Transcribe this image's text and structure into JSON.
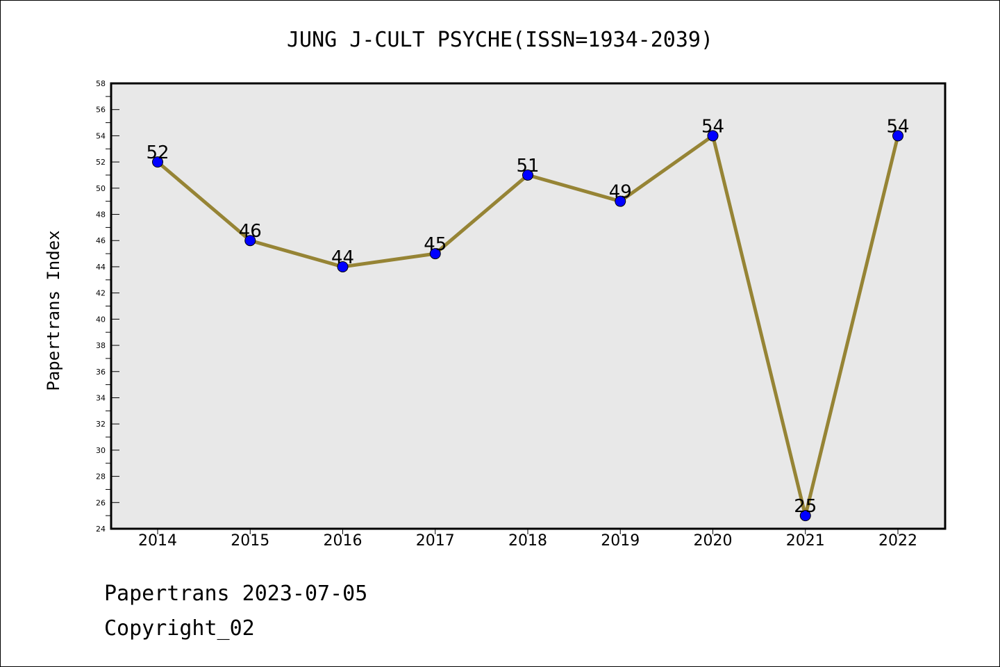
{
  "chart_data": {
    "type": "line",
    "title": "JUNG J-CULT PSYCHE(ISSN=1934-2039)",
    "xlabel": "",
    "ylabel": "Papertrans Index",
    "x": [
      "2014",
      "2015",
      "2016",
      "2017",
      "2018",
      "2019",
      "2020",
      "2021",
      "2022"
    ],
    "series": [
      {
        "values": [
          52,
          46,
          44,
          45,
          51,
          49,
          54,
          25,
          54
        ]
      }
    ],
    "ylim": [
      24,
      58
    ],
    "ytick_step": 2,
    "grid": false,
    "legend": "none",
    "data_labels": true
  },
  "colors": {
    "plot_background": "#e8e8e8",
    "line": "#968435",
    "marker": "#0000ff"
  },
  "footer": {
    "line1": "Papertrans 2023-07-05",
    "line2": "Copyright_02"
  }
}
